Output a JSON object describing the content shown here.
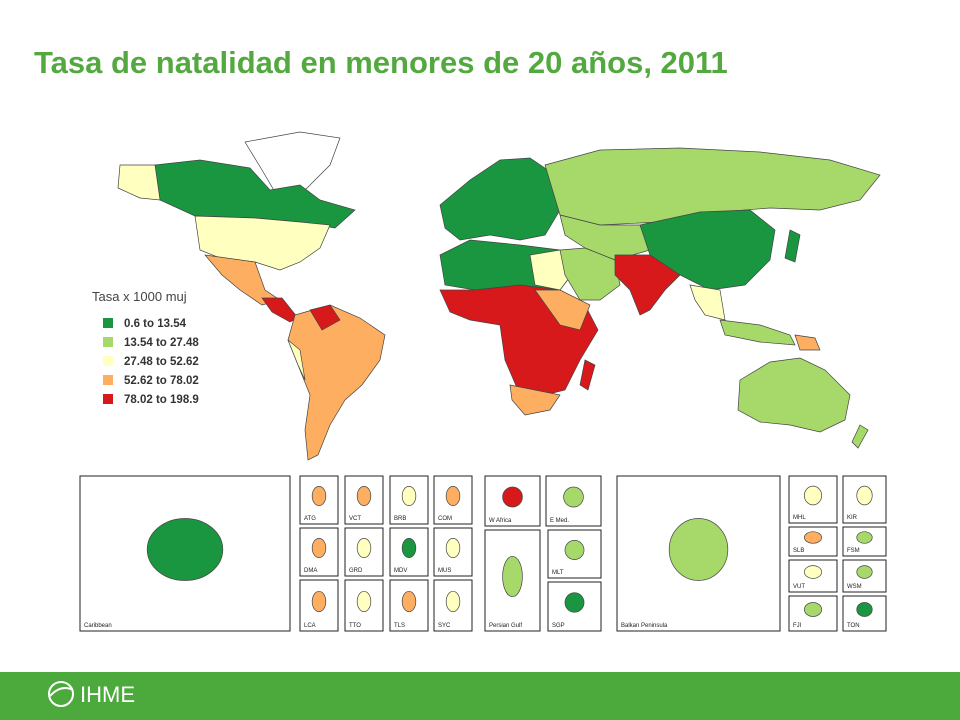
{
  "title": "Tasa de natalidad en menores de 20 años, 2011",
  "legend": {
    "title": "Tasa x 1000 muj",
    "items": [
      {
        "label": "0.6 to 13.54",
        "color": "#1a9641"
      },
      {
        "label": "13.54 to 27.48",
        "color": "#a6d96a"
      },
      {
        "label": "27.48 to 52.62",
        "color": "#ffffbf"
      },
      {
        "label": "52.62 to 78.02",
        "color": "#fdae61"
      },
      {
        "label": "78.02 to 198.9",
        "color": "#d7191c"
      }
    ]
  },
  "insets": [
    "Caribbean",
    "ATG",
    "VCT",
    "BRB",
    "COM",
    "DMA",
    "GRD",
    "MDV",
    "MUS",
    "LCA",
    "TTO",
    "TLS",
    "SYC",
    "W Africa",
    "E Med.",
    "Persian Gulf",
    "MLT",
    "SGP",
    "Balkan Peninsula",
    "MHL",
    "KIR",
    "SLB",
    "FSM",
    "VUT",
    "WSM",
    "FJI",
    "TON"
  ],
  "logo": "IHME"
}
